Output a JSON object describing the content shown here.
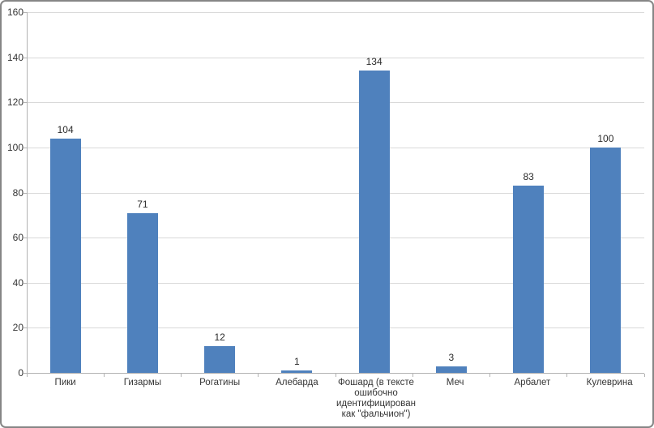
{
  "chart_data": {
    "type": "bar",
    "title": "",
    "xlabel": "",
    "ylabel": "",
    "categories": [
      "Пики",
      "Гизармы",
      "Рогатины",
      "Алебарда",
      "Фошард (в тексте ошибочно идентифицирован как \"фальчион\")",
      "Меч",
      "Арбалет",
      "Кулеврина"
    ],
    "values": [
      104,
      71,
      12,
      1,
      134,
      3,
      83,
      100
    ],
    "data_labels_shown": true,
    "ylim": [
      0,
      160
    ],
    "yticks": [
      0,
      20,
      40,
      60,
      80,
      100,
      120,
      140,
      160
    ],
    "grid": true,
    "legend_position": "none",
    "bar_color": "#4f81bd",
    "gridline_color": "#d9d9d9",
    "axis_color": "#b3b3b3",
    "text_color": "#353535",
    "frame_color": "#868686",
    "background_color": "#ffffff"
  }
}
